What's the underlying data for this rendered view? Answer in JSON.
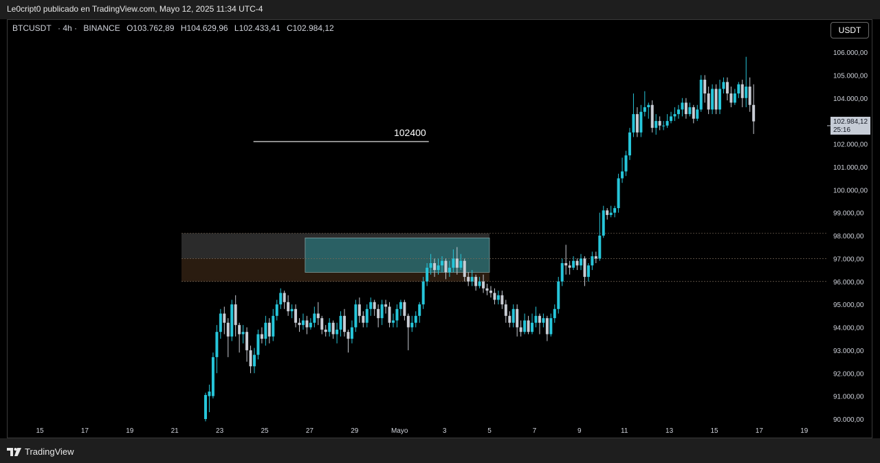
{
  "header": {
    "published_by": "Le0cript0 publicado en TradingView.com, Mayo 12, 2025 11:34 UTC-4"
  },
  "legend": {
    "symbol": "BTCUSDT",
    "interval": "· 4h ·",
    "exchange": "BINANCE",
    "open": "O103.762,89",
    "high": "H104.629,96",
    "low": "L102.433,41",
    "close": "C102.984,12"
  },
  "currency_button": "USDT",
  "price_tag": {
    "price": "102.984,12",
    "countdown": "25:16"
  },
  "brand": {
    "name": "TradingView"
  },
  "colors": {
    "up": "#26c6da",
    "down": "#c8ccd4",
    "zone_gray": "#2b2b2b",
    "zone_orange": "#2a1c10",
    "target_box": "#2a6a6e"
  },
  "chart_data": {
    "type": "candlestick",
    "y_ticks": [
      "90.000,00",
      "91.000,00",
      "92.000,00",
      "93.000,00",
      "94.000,00",
      "95.000,00",
      "96.000,00",
      "97.000,00",
      "98.000,00",
      "99.000,00",
      "100.000,00",
      "101.000,00",
      "102.000,00",
      "103.000,00",
      "104.000,00",
      "105.000,00",
      "106.000,00"
    ],
    "x_ticks": [
      "15",
      "17",
      "19",
      "21",
      "23",
      "25",
      "27",
      "29",
      "Mayo",
      "3",
      "5",
      "7",
      "9",
      "11",
      "13",
      "15",
      "17",
      "19"
    ],
    "ylim": [
      89900,
      106300
    ],
    "annotations": [
      {
        "type": "horizontal_line",
        "label": "102400",
        "value": 102400,
        "from_day": 9.5,
        "to_day": 17.3
      },
      {
        "type": "zone",
        "name": "gray",
        "from_day": 6.3,
        "to_day": 20,
        "low": 97000,
        "high": 98100
      },
      {
        "type": "zone",
        "name": "orange",
        "from_day": 6.3,
        "to_day": 20,
        "low": 96000,
        "high": 97000
      },
      {
        "type": "zone",
        "name": "target",
        "from_day": 11.8,
        "to_day": 20,
        "low": 96400,
        "high": 97900
      }
    ],
    "candles": [
      [
        90000,
        91050,
        89900,
        91150
      ],
      [
        91000,
        91200,
        90300,
        91500
      ],
      [
        91000,
        92700,
        90900,
        92900
      ],
      [
        92700,
        93800,
        92000,
        94100
      ],
      [
        93800,
        94600,
        93500,
        94800
      ],
      [
        94600,
        94200,
        93700,
        94900
      ],
      [
        94200,
        93600,
        92700,
        94400
      ],
      [
        93600,
        95000,
        93400,
        95200
      ],
      [
        95000,
        94100,
        93600,
        95400
      ],
      [
        94100,
        93700,
        92900,
        94200
      ],
      [
        93700,
        93800,
        93300,
        94100
      ],
      [
        93800,
        93000,
        92500,
        94000
      ],
      [
        93000,
        92300,
        92000,
        93200
      ],
      [
        92300,
        92800,
        92000,
        93100
      ],
      [
        92800,
        93700,
        92600,
        93900
      ],
      [
        93700,
        93500,
        93300,
        94000
      ],
      [
        93500,
        94200,
        93200,
        94500
      ],
      [
        94200,
        93600,
        93300,
        94400
      ],
      [
        93600,
        94500,
        93400,
        94800
      ],
      [
        94500,
        95000,
        94300,
        95200
      ],
      [
        95000,
        95500,
        94800,
        95700
      ],
      [
        95500,
        95100,
        94800,
        95600
      ],
      [
        95100,
        94700,
        94500,
        95400
      ],
      [
        94700,
        94800,
        94400,
        95000
      ],
      [
        94800,
        94200,
        94000,
        95000
      ],
      [
        94200,
        94100,
        93800,
        94400
      ],
      [
        94100,
        94300,
        93900,
        94600
      ],
      [
        94300,
        94000,
        93700,
        94500
      ],
      [
        94000,
        94200,
        93900,
        94400
      ],
      [
        94200,
        94600,
        94000,
        94900
      ],
      [
        94600,
        94400,
        94100,
        95100
      ],
      [
        94400,
        93900,
        93700,
        94500
      ],
      [
        93900,
        93800,
        93600,
        94100
      ],
      [
        93800,
        94200,
        93600,
        94400
      ],
      [
        94200,
        93700,
        93500,
        94300
      ],
      [
        93700,
        93900,
        93300,
        94200
      ],
      [
        93900,
        94500,
        93600,
        94700
      ],
      [
        94500,
        93800,
        93600,
        94800
      ],
      [
        93800,
        93500,
        92900,
        93900
      ],
      [
        93500,
        94000,
        93300,
        94300
      ],
      [
        94000,
        95000,
        93800,
        95200
      ],
      [
        95000,
        94500,
        94200,
        95300
      ],
      [
        94500,
        94200,
        94000,
        94700
      ],
      [
        94200,
        94800,
        94000,
        95000
      ],
      [
        94800,
        95100,
        94500,
        95300
      ],
      [
        95100,
        94800,
        94500,
        95200
      ],
      [
        94800,
        94400,
        94000,
        95000
      ],
      [
        94400,
        95000,
        94100,
        95200
      ],
      [
        95000,
        94900,
        94600,
        95200
      ],
      [
        94900,
        94200,
        94000,
        95100
      ],
      [
        94200,
        94300,
        94000,
        94600
      ],
      [
        94300,
        94800,
        94000,
        95000
      ],
      [
        94800,
        95100,
        94500,
        95200
      ],
      [
        95100,
        94500,
        94300,
        95200
      ],
      [
        94500,
        94000,
        93000,
        94600
      ],
      [
        94000,
        94200,
        93800,
        94500
      ],
      [
        94200,
        94500,
        94000,
        94700
      ],
      [
        94500,
        95000,
        94200,
        95100
      ],
      [
        95000,
        96000,
        94800,
        96200
      ],
      [
        96000,
        96600,
        95800,
        96800
      ],
      [
        96600,
        96800,
        96300,
        97200
      ],
      [
        96800,
        96500,
        96200,
        97000
      ],
      [
        96500,
        96700,
        96300,
        97000
      ],
      [
        96700,
        96900,
        96400,
        97100
      ],
      [
        96900,
        96400,
        96100,
        97000
      ],
      [
        96400,
        96600,
        96200,
        96900
      ],
      [
        96600,
        97000,
        96400,
        97400
      ],
      [
        97000,
        96600,
        96300,
        97500
      ],
      [
        96600,
        96900,
        96500,
        97200
      ],
      [
        96900,
        96200,
        96000,
        97000
      ],
      [
        96200,
        96000,
        95800,
        96400
      ],
      [
        96000,
        96200,
        95800,
        96500
      ],
      [
        96200,
        95800,
        95600,
        96300
      ],
      [
        95800,
        96000,
        95700,
        96200
      ],
      [
        96000,
        95700,
        95500,
        96300
      ],
      [
        95700,
        95600,
        95400,
        95900
      ],
      [
        95600,
        95500,
        95300,
        95800
      ],
      [
        95500,
        95200,
        95000,
        95700
      ],
      [
        95200,
        95400,
        95000,
        95600
      ],
      [
        95400,
        95000,
        94800,
        95600
      ],
      [
        95000,
        94500,
        94200,
        95200
      ],
      [
        94500,
        94200,
        94000,
        94700
      ],
      [
        94200,
        94800,
        94000,
        95000
      ],
      [
        94800,
        94000,
        93600,
        95000
      ],
      [
        94000,
        93800,
        93600,
        94300
      ],
      [
        93800,
        94300,
        93700,
        94600
      ],
      [
        94300,
        93800,
        93700,
        94500
      ],
      [
        93800,
        94200,
        93700,
        94600
      ],
      [
        94200,
        94500,
        94000,
        94900
      ],
      [
        94500,
        94200,
        93700,
        94600
      ],
      [
        94200,
        94400,
        94000,
        94600
      ],
      [
        94400,
        93700,
        93400,
        94500
      ],
      [
        93700,
        94400,
        93600,
        94600
      ],
      [
        94400,
        94800,
        94200,
        95000
      ],
      [
        94800,
        96000,
        94600,
        96200
      ],
      [
        96000,
        96800,
        95800,
        97000
      ],
      [
        96800,
        96700,
        96300,
        97600
      ],
      [
        96700,
        96600,
        96300,
        96900
      ],
      [
        96600,
        96900,
        96500,
        97100
      ],
      [
        96900,
        96700,
        96500,
        97000
      ],
      [
        96700,
        97000,
        96500,
        97200
      ],
      [
        97000,
        96200,
        95800,
        97100
      ],
      [
        96200,
        96700,
        96000,
        96800
      ],
      [
        96700,
        97100,
        96500,
        97300
      ],
      [
        97100,
        97000,
        96800,
        97300
      ],
      [
        97000,
        98000,
        96900,
        99000
      ],
      [
        98000,
        99100,
        97900,
        99300
      ],
      [
        99100,
        98900,
        98700,
        99200
      ],
      [
        98900,
        99000,
        98800,
        99300
      ],
      [
        99000,
        99200,
        98800,
        99300
      ],
      [
        99200,
        100500,
        99000,
        100700
      ],
      [
        100500,
        100800,
        100300,
        101400
      ],
      [
        100800,
        101500,
        100600,
        101700
      ],
      [
        101500,
        102500,
        101300,
        102700
      ],
      [
        102500,
        103300,
        102300,
        104200
      ],
      [
        103300,
        102500,
        102300,
        103600
      ],
      [
        102500,
        103400,
        102300,
        103700
      ],
      [
        103400,
        103600,
        103200,
        104300
      ],
      [
        103600,
        103700,
        103100,
        103800
      ],
      [
        103700,
        102700,
        102500,
        103900
      ],
      [
        102700,
        103000,
        102400,
        103300
      ],
      [
        103000,
        102800,
        102600,
        103200
      ],
      [
        102800,
        102800,
        102600,
        103000
      ],
      [
        102800,
        103000,
        102700,
        103300
      ],
      [
        103000,
        103200,
        102900,
        103400
      ],
      [
        103200,
        103300,
        103000,
        103600
      ],
      [
        103300,
        103500,
        103100,
        103700
      ],
      [
        103500,
        103800,
        103200,
        104000
      ],
      [
        103800,
        103300,
        103100,
        104000
      ],
      [
        103300,
        103600,
        103200,
        103800
      ],
      [
        103600,
        103100,
        102900,
        103700
      ],
      [
        103100,
        103500,
        103000,
        103700
      ],
      [
        103500,
        104800,
        103400,
        105000
      ],
      [
        104800,
        104200,
        103800,
        105000
      ],
      [
        104200,
        103500,
        103300,
        104500
      ],
      [
        103500,
        104400,
        103300,
        104600
      ],
      [
        104400,
        103500,
        103300,
        104600
      ],
      [
        103500,
        104400,
        103300,
        104800
      ],
      [
        104400,
        104700,
        104200,
        104900
      ],
      [
        104700,
        104200,
        103900,
        104900
      ],
      [
        104200,
        103800,
        103600,
        104500
      ],
      [
        103800,
        104200,
        103700,
        104400
      ],
      [
        104200,
        104600,
        104000,
        104700
      ],
      [
        104600,
        104000,
        103600,
        104800
      ],
      [
        104000,
        104500,
        103600,
        105800
      ],
      [
        104500,
        103700,
        103400,
        104900
      ],
      [
        103700,
        102984,
        102433,
        104600
      ]
    ]
  }
}
